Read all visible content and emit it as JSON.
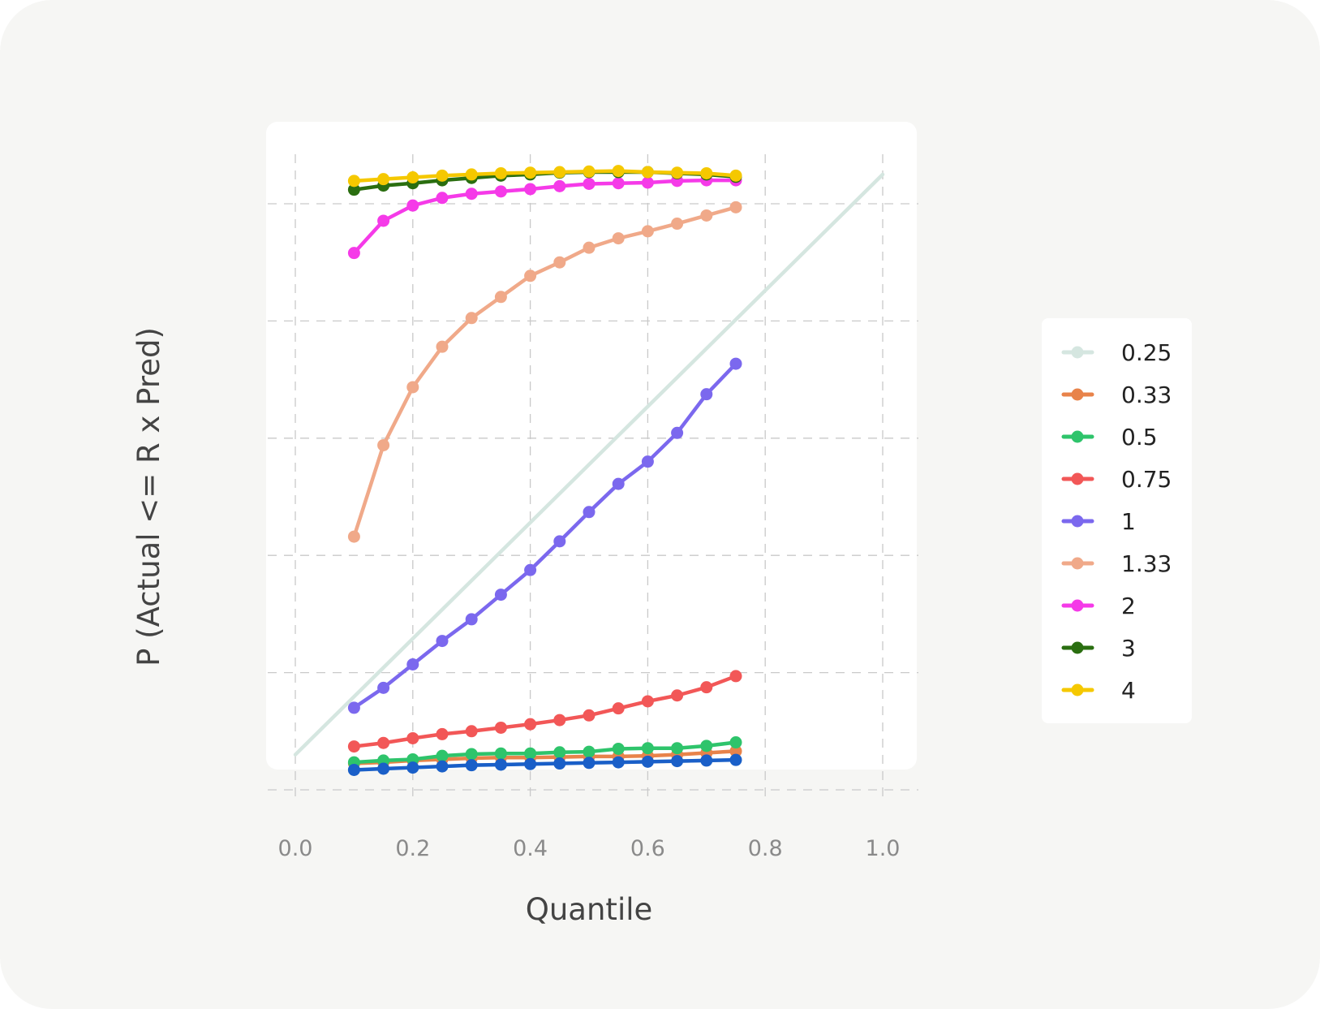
{
  "chart_data": {
    "type": "line",
    "title": "",
    "xlabel": "Quantile",
    "ylabel": "P (Actual <= R x Pred)",
    "xlim": [
      0.0,
      1.0
    ],
    "ylim": [
      0.0,
      1.0
    ],
    "x_ticks": [
      "0.0",
      "0.2",
      "0.4",
      "0.6",
      "0.8",
      "1.0"
    ],
    "grid": true,
    "legend_position": "right",
    "x": [
      0.1,
      0.15,
      0.2,
      0.25,
      0.3,
      0.35,
      0.4,
      0.45,
      0.5,
      0.55,
      0.6,
      0.65,
      0.7,
      0.75
    ],
    "reference_line": {
      "x": [
        0.0,
        1.0
      ],
      "y": [
        0.06,
        1.05
      ]
    },
    "series": [
      {
        "name": "0.25",
        "color": "#d5e6e0",
        "values": [
          0.034,
          0.036,
          0.038,
          0.04,
          0.042,
          0.043,
          0.044,
          0.045,
          0.046,
          0.047,
          0.048,
          0.049,
          0.05,
          0.051
        ]
      },
      {
        "name": "0.33",
        "color": "#e8834a",
        "values": [
          0.045,
          0.047,
          0.05,
          0.052,
          0.054,
          0.055,
          0.055,
          0.056,
          0.057,
          0.057,
          0.058,
          0.06,
          0.063,
          0.066
        ]
      },
      {
        "name": "0.5",
        "color": "#2ec46b",
        "values": [
          0.047,
          0.05,
          0.052,
          0.058,
          0.061,
          0.062,
          0.062,
          0.064,
          0.065,
          0.07,
          0.071,
          0.071,
          0.075,
          0.081
        ]
      },
      {
        "name": "0.75",
        "color": "#f25757",
        "values": [
          0.074,
          0.08,
          0.088,
          0.095,
          0.1,
          0.106,
          0.112,
          0.119,
          0.127,
          0.139,
          0.151,
          0.161,
          0.175,
          0.194
        ]
      },
      {
        "name": "1",
        "color": "#7b68ee",
        "values": [
          0.14,
          0.174,
          0.214,
          0.254,
          0.291,
          0.333,
          0.375,
          0.424,
          0.474,
          0.522,
          0.56,
          0.609,
          0.675,
          0.727
        ]
      },
      {
        "name": "1.33",
        "color": "#f0a989",
        "values": [
          0.432,
          0.588,
          0.687,
          0.756,
          0.805,
          0.841,
          0.877,
          0.9,
          0.925,
          0.941,
          0.953,
          0.966,
          0.98,
          0.994
        ]
      },
      {
        "name": "2",
        "color": "#f53ae8",
        "values": [
          0.916,
          0.971,
          0.997,
          1.01,
          1.017,
          1.021,
          1.025,
          1.03,
          1.034,
          1.035,
          1.036,
          1.039,
          1.04,
          1.04
        ]
      },
      {
        "name": "3",
        "color": "#2a6e10",
        "values": [
          1.024,
          1.031,
          1.035,
          1.04,
          1.044,
          1.048,
          1.05,
          1.053,
          1.054,
          1.054,
          1.054,
          1.052,
          1.05,
          1.046
        ]
      },
      {
        "name": "4",
        "color": "#f5c800",
        "values": [
          1.039,
          1.042,
          1.045,
          1.048,
          1.05,
          1.052,
          1.053,
          1.054,
          1.055,
          1.056,
          1.054,
          1.053,
          1.052,
          1.048
        ]
      }
    ],
    "bottom_line": {
      "color": "#1a5fc8",
      "values": [
        0.034,
        0.036,
        0.038,
        0.04,
        0.042,
        0.043,
        0.044,
        0.045,
        0.046,
        0.047,
        0.048,
        0.049,
        0.05,
        0.051
      ]
    }
  }
}
